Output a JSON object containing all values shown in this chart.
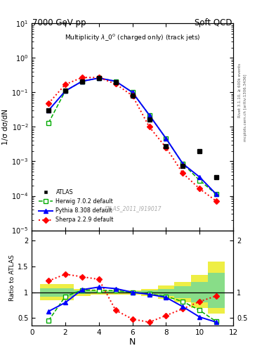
{
  "title_left": "7000 GeV pp",
  "title_right": "Soft QCD",
  "plot_title": "Multiplicity $\\lambda\\_0^0$ (charged only) (track jets)",
  "watermark": "ATLAS_2011_I919017",
  "ylabel_main": "1/σ dσ/dN",
  "ylabel_ratio": "Ratio to ATLAS",
  "xlabel": "N",
  "right_label": "Rivet 3.1.10, ≥ 600k events",
  "right_label2": "mcplots.cern.ch [arXiv:1306.3436]",
  "x_atlas": [
    1,
    2,
    3,
    4,
    5,
    6,
    7,
    8,
    9,
    10,
    11
  ],
  "y_atlas": [
    0.03,
    0.11,
    0.21,
    0.26,
    0.2,
    0.08,
    0.016,
    0.0028,
    0.00075,
    0.002,
    0.00035
  ],
  "x_herwig": [
    1,
    2,
    3,
    4,
    5,
    6,
    7,
    8,
    9,
    10,
    11
  ],
  "y_herwig": [
    0.013,
    0.11,
    0.21,
    0.26,
    0.21,
    0.1,
    0.022,
    0.0046,
    0.00085,
    0.00028,
    0.00011
  ],
  "x_pythia": [
    1,
    2,
    3,
    4,
    5,
    6,
    7,
    8,
    9,
    10,
    11
  ],
  "y_pythia": [
    0.03,
    0.11,
    0.21,
    0.26,
    0.21,
    0.1,
    0.022,
    0.0046,
    0.00085,
    0.00035,
    0.00011
  ],
  "x_sherpa": [
    1,
    2,
    3,
    4,
    5,
    6,
    7,
    8,
    9,
    10,
    11
  ],
  "y_sherpa": [
    0.048,
    0.17,
    0.27,
    0.27,
    0.175,
    0.08,
    0.01,
    0.0025,
    0.00045,
    0.00016,
    7e-05
  ],
  "ratio_herwig": [
    0.45,
    0.92,
    1.04,
    1.04,
    1.03,
    1.0,
    0.97,
    0.92,
    0.82,
    0.65,
    0.43
  ],
  "ratio_pythia": [
    0.63,
    0.8,
    1.05,
    1.1,
    1.07,
    1.0,
    0.96,
    0.9,
    0.72,
    0.52,
    0.42
  ],
  "ratio_sherpa": [
    1.22,
    1.35,
    1.3,
    1.25,
    0.65,
    0.48,
    0.42,
    0.55,
    0.68,
    0.82,
    0.93
  ],
  "band_x": [
    0.5,
    1.5,
    2.5,
    3.5,
    4.5,
    5.5,
    6.5,
    7.5,
    8.5,
    9.5,
    10.5,
    11.5
  ],
  "atlas_stat_lo": [
    0.92,
    0.92,
    0.97,
    0.98,
    0.98,
    0.98,
    0.97,
    0.93,
    0.88,
    0.8,
    0.7
  ],
  "atlas_stat_hi": [
    1.08,
    1.08,
    1.03,
    1.02,
    1.02,
    1.02,
    1.03,
    1.07,
    1.12,
    1.2,
    1.38
  ],
  "atlas_sys_lo": [
    0.84,
    0.84,
    0.93,
    0.96,
    0.96,
    0.96,
    0.93,
    0.87,
    0.8,
    0.7,
    0.58
  ],
  "atlas_sys_hi": [
    1.16,
    1.16,
    1.07,
    1.04,
    1.04,
    1.04,
    1.07,
    1.13,
    1.2,
    1.33,
    1.6
  ],
  "color_atlas": "#000000",
  "color_herwig": "#00aa00",
  "color_pythia": "#0000ff",
  "color_sherpa": "#ff0000",
  "color_band_green": "#88dd88",
  "color_band_yellow": "#eeee44",
  "ylim_main": [
    1e-05,
    10
  ],
  "ylim_ratio": [
    0.35,
    2.2
  ],
  "xlim": [
    0,
    12
  ],
  "xticks": [
    0,
    2,
    4,
    6,
    8,
    10,
    12
  ]
}
